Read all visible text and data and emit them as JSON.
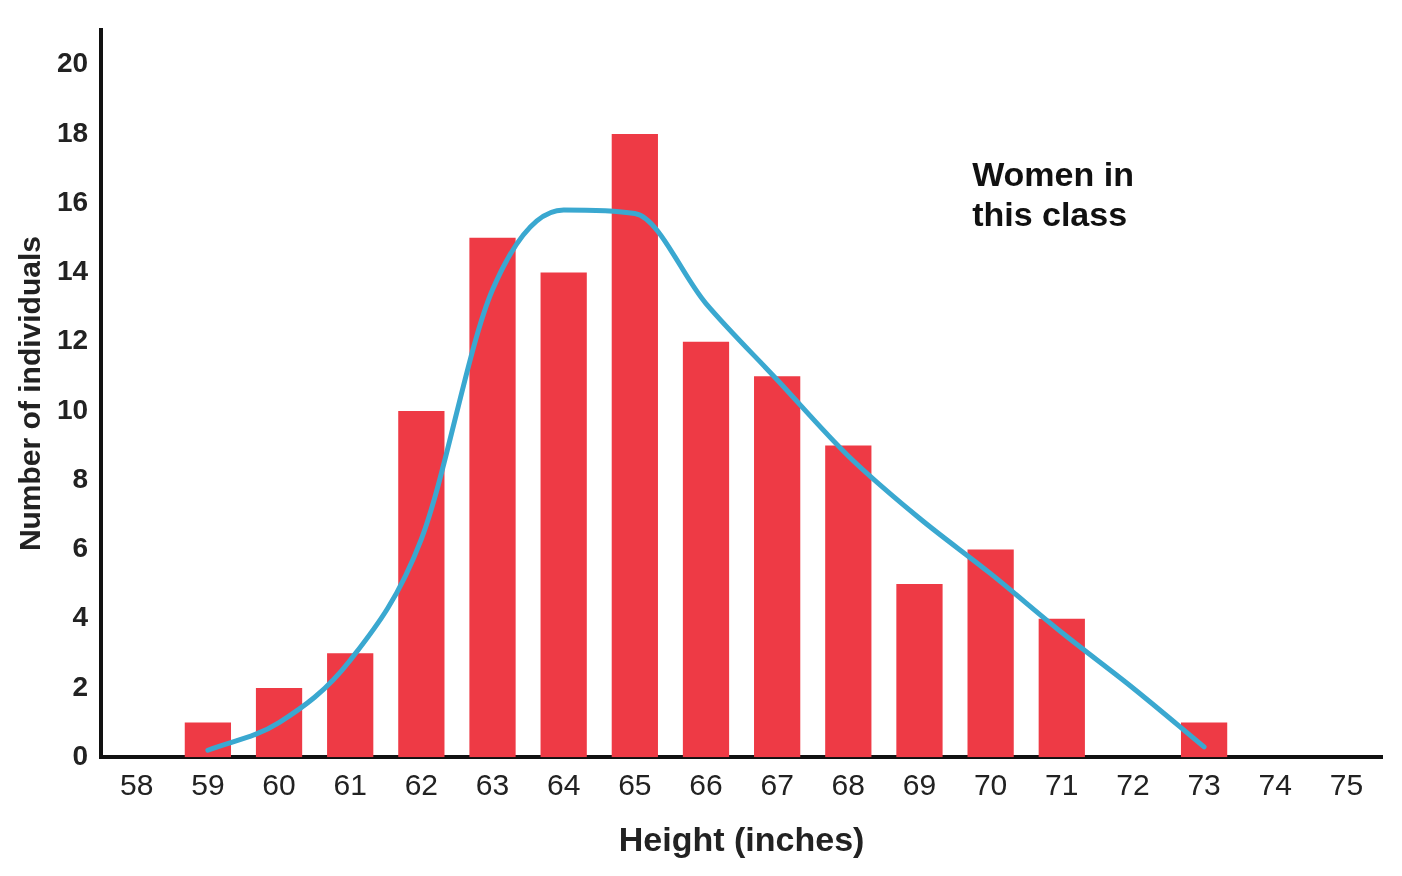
{
  "chart_data": {
    "type": "bar",
    "xlabel": "Height (inches)",
    "ylabel": "Number of individuals",
    "categories": [
      "58",
      "59",
      "60",
      "61",
      "62",
      "63",
      "64",
      "65",
      "66",
      "67",
      "68",
      "69",
      "70",
      "71",
      "72",
      "73",
      "74",
      "75"
    ],
    "series": [
      {
        "color": "#ee3a45",
        "values": [
          0,
          1,
          2,
          3,
          10,
          15,
          14,
          18,
          12,
          11,
          9,
          5,
          6,
          4,
          0,
          1,
          0,
          0
        ]
      },
      {
        "type": "line",
        "color": "#3aa8d0",
        "values": [
          null,
          0.2,
          1,
          2.8,
          6.3,
          13.5,
          15.8,
          15.7,
          13.1,
          10.9,
          8.7,
          6.9,
          5.3,
          3.6,
          2,
          0.3,
          null,
          null
        ]
      }
    ],
    "ylim": [
      0,
      21
    ],
    "yticks": [
      0,
      2,
      4,
      6,
      8,
      10,
      12,
      14,
      16,
      18,
      20
    ],
    "annotations": [
      "Women in this class"
    ],
    "grid": false,
    "legend": false
  }
}
